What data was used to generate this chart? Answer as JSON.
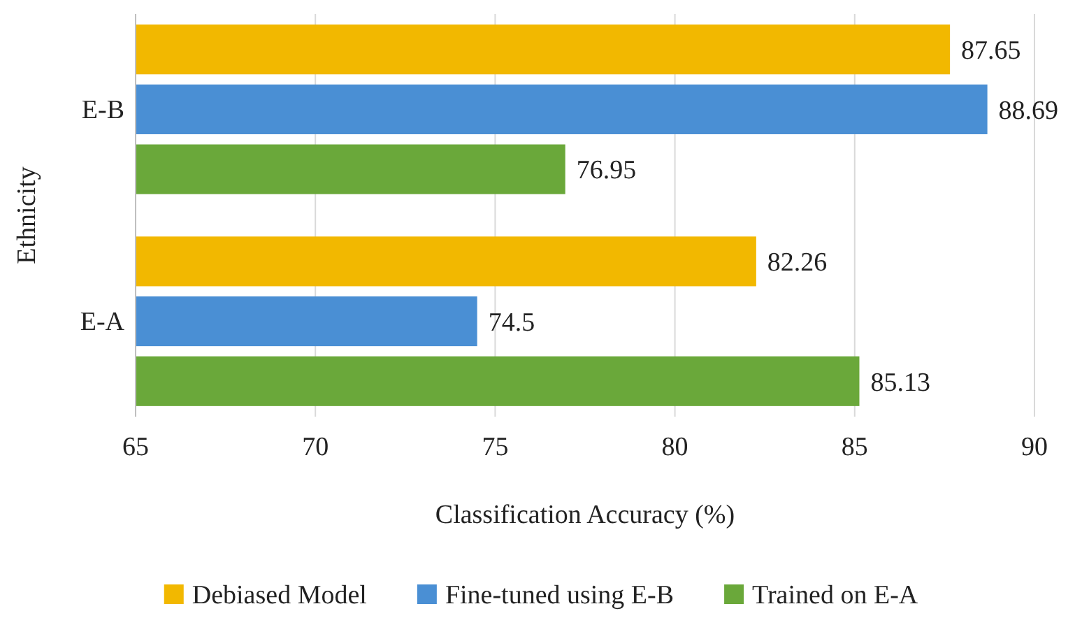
{
  "chart_data": {
    "type": "bar",
    "orientation": "horizontal",
    "xlabel": "Classification Accuracy (%)",
    "ylabel": "Ethnicity",
    "categories": [
      "E-B",
      "E-A"
    ],
    "series": [
      {
        "name": "Debiased Model",
        "color": "#f2b800",
        "values": [
          87.65,
          82.26
        ]
      },
      {
        "name": "Fine-tuned using E-B",
        "color": "#4a8fd4",
        "values": [
          88.69,
          74.5
        ]
      },
      {
        "name": "Trained on E-A",
        "color": "#6aa83a",
        "values": [
          76.95,
          85.13
        ]
      }
    ],
    "xlim": [
      65,
      90
    ],
    "xticks": [
      65,
      70,
      75,
      80,
      85,
      90
    ],
    "grid": "x",
    "legend": "bottom",
    "data_labels": true
  }
}
